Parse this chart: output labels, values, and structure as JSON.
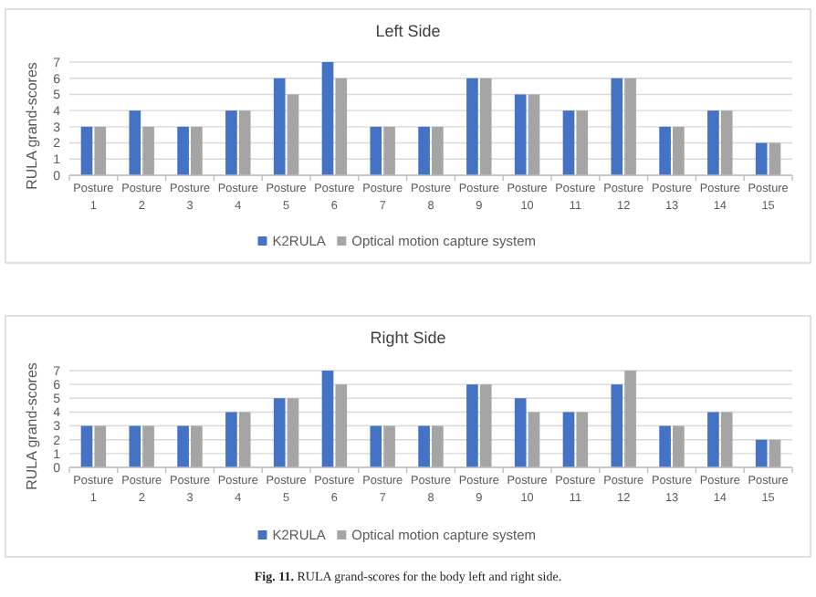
{
  "chart_data": [
    {
      "type": "bar",
      "title": "Left Side",
      "ylabel": "RULA grand-scores",
      "categories": [
        "Posture 1",
        "Posture 2",
        "Posture 3",
        "Posture 4",
        "Posture 5",
        "Posture 6",
        "Posture 7",
        "Posture 8",
        "Posture 9",
        "Posture 10",
        "Posture 11",
        "Posture 12",
        "Posture 13",
        "Posture 14",
        "Posture 15"
      ],
      "series": [
        {
          "name": "K2RULA",
          "color": "#4472c4",
          "values": [
            3,
            4,
            3,
            4,
            6,
            7,
            3,
            3,
            6,
            5,
            4,
            6,
            3,
            4,
            2
          ]
        },
        {
          "name": "Optical motion capture system",
          "color": "#a5a5a5",
          "values": [
            3,
            3,
            3,
            4,
            5,
            6,
            3,
            3,
            6,
            5,
            4,
            6,
            3,
            4,
            2
          ]
        }
      ],
      "ylim": [
        0,
        7
      ],
      "yticks": [
        0,
        1,
        2,
        3,
        4,
        5,
        6,
        7
      ],
      "grid": "y",
      "legend": "bottom"
    },
    {
      "type": "bar",
      "title": "Right Side",
      "ylabel": "RULA grand-scores",
      "categories": [
        "Posture 1",
        "Posture 2",
        "Posture 3",
        "Posture 4",
        "Posture 5",
        "Posture 6",
        "Posture 7",
        "Posture 8",
        "Posture 9",
        "Posture 10",
        "Posture 11",
        "Posture 12",
        "Posture 13",
        "Posture 14",
        "Posture 15"
      ],
      "series": [
        {
          "name": "K2RULA",
          "color": "#4472c4",
          "values": [
            3,
            3,
            3,
            4,
            5,
            7,
            3,
            3,
            6,
            5,
            4,
            6,
            3,
            4,
            2
          ]
        },
        {
          "name": "Optical motion capture system",
          "color": "#a5a5a5",
          "values": [
            3,
            3,
            3,
            4,
            5,
            6,
            3,
            3,
            6,
            4,
            4,
            7,
            3,
            4,
            2
          ]
        }
      ],
      "ylim": [
        0,
        7
      ],
      "yticks": [
        0,
        1,
        2,
        3,
        4,
        5,
        6,
        7
      ],
      "grid": "y",
      "legend": "bottom",
      "annotations": [
        "Fig. 11. RULA grand-scores for the body left and right side."
      ]
    }
  ]
}
